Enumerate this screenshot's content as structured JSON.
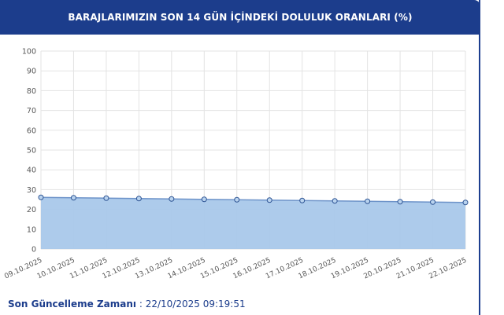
{
  "header": {
    "title": "BARAJLARIMIZIN SON 14 GÜN İÇİNDEKİ DOLULUK ORANLARI (%)"
  },
  "footer": {
    "label": "Son Güncelleme Zamanı",
    "separator": " : ",
    "value": "22/10/2025 09:19:51"
  },
  "colors": {
    "header_bg": "#1c3d8c",
    "line": "#6d93c9",
    "area_fill": "#a9c8ea",
    "marker_fill": "#b9d3ef",
    "marker_stroke": "#2f5594",
    "grid": "#e3e3e3"
  },
  "chart_data": {
    "type": "area",
    "title": "BARAJLARIMIZIN SON 14 GÜN İÇİNDEKİ DOLULUK ORANLARI (%)",
    "xlabel": "",
    "ylabel": "",
    "ylim": [
      0,
      100
    ],
    "yticks": [
      0,
      10,
      20,
      30,
      40,
      50,
      60,
      70,
      80,
      90,
      100
    ],
    "grid": true,
    "legend": "none",
    "categories": [
      "09.10.2025",
      "10.10.2025",
      "11.10.2025",
      "12.10.2025",
      "13.10.2025",
      "14.10.2025",
      "15.10.2025",
      "16.10.2025",
      "17.10.2025",
      "18.10.2025",
      "19.10.2025",
      "20.10.2025",
      "21.10.2025",
      "22.10.2025"
    ],
    "series": [
      {
        "values": [
          26.1,
          25.9,
          25.7,
          25.5,
          25.3,
          25.1,
          24.9,
          24.7,
          24.5,
          24.3,
          24.1,
          23.9,
          23.7,
          23.5
        ]
      }
    ]
  }
}
